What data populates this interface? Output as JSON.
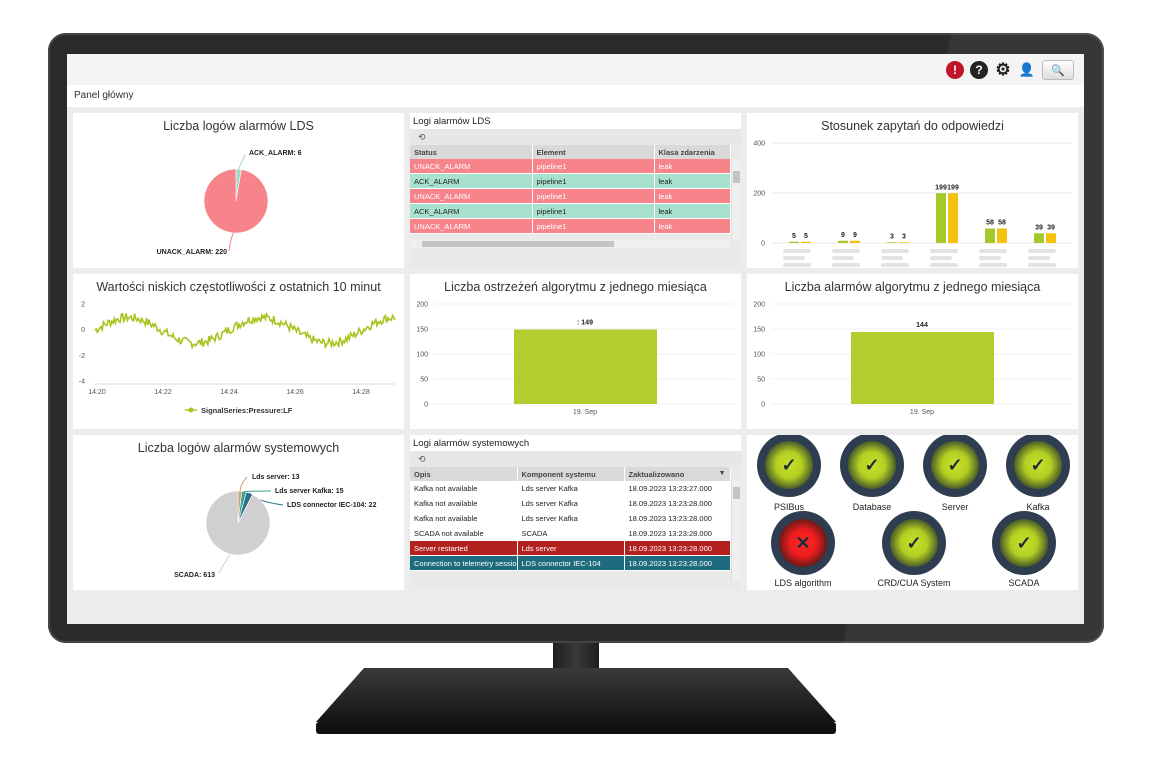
{
  "breadcrumb": "Panel główny",
  "toolbar": {
    "alert_glyph": "!",
    "help_glyph": "?",
    "settings_glyph": "⚙",
    "user_glyph": "👤",
    "search_glyph": "🔍"
  },
  "panels": {
    "lds_pie": {
      "title": "Liczba logów alarmów LDS",
      "slices": [
        {
          "label": "ACK_ALARM: 6",
          "value": 6,
          "color": "#9fd8c5"
        },
        {
          "label": "UNACK_ALARM: 220",
          "value": 220,
          "color": "#f7848a"
        }
      ]
    },
    "lds_log": {
      "title": "Logi alarmów LDS",
      "refresh_glyph": "⟲",
      "columns": [
        "Status",
        "Element",
        "Klasa zdarzenia"
      ],
      "rows": [
        {
          "status": "UNACK_ALARM",
          "element": "pipeline1",
          "klasa": "leak",
          "kind": "unack"
        },
        {
          "status": "ACK_ALARM",
          "element": "pipeline1",
          "klasa": "leak",
          "kind": "ack"
        },
        {
          "status": "UNACK_ALARM",
          "element": "pipeline1",
          "klasa": "leak",
          "kind": "unack"
        },
        {
          "status": "ACK_ALARM",
          "element": "pipeline1",
          "klasa": "leak",
          "kind": "ack"
        },
        {
          "status": "UNACK_ALARM",
          "element": "pipeline1",
          "klasa": "leak",
          "kind": "unack"
        }
      ]
    },
    "ratio": {
      "title": "Stosunek zapytań do odpowiedzi",
      "y_ticks": [
        "400",
        "200",
        "0"
      ],
      "groups": [
        {
          "a": "5",
          "b": "5"
        },
        {
          "a": "9",
          "b": "9"
        },
        {
          "a": "3",
          "b": "3"
        },
        {
          "a": "199",
          "b": "199"
        },
        {
          "a": "58",
          "b": "58"
        },
        {
          "a": "39",
          "b": "39"
        }
      ]
    },
    "lowfreq": {
      "title": "Wartości niskich częstotliwości z ostatnich 10 minut",
      "y_ticks": [
        "2",
        "0",
        "-2",
        "-4"
      ],
      "x_ticks": [
        "14:20",
        "14:22",
        "14:24",
        "14:26",
        "14:28"
      ],
      "legend": "SignalSeries:Pressure:LF"
    },
    "warnings": {
      "title": "Liczba ostrzeżeń algorytmu z jednego miesiąca",
      "bar_label": ": 149",
      "x_tick": "19. Sep",
      "y_ticks": [
        "200",
        "150",
        "100",
        "50",
        "0"
      ]
    },
    "alarms": {
      "title": "Liczba alarmów algorytmu z jednego miesiąca",
      "bar_label": "144",
      "x_tick": "19. Sep",
      "y_ticks": [
        "200",
        "150",
        "100",
        "50",
        "0"
      ]
    },
    "sys_pie": {
      "title": "Liczba logów alarmów systemowych",
      "slices": [
        {
          "label": "Lds server: 13",
          "value": 13,
          "color": "#c7a27a"
        },
        {
          "label": "Lds server Kafka: 15",
          "value": 15,
          "color": "#3aa38f"
        },
        {
          "label": "LDS connector IEC-104: 22",
          "value": 22,
          "color": "#2c6e8c"
        },
        {
          "label": "SCADA: 613",
          "value": 613,
          "color": "#d0d0d0"
        }
      ]
    },
    "sys_log": {
      "title": "Logi alarmów systemowych",
      "refresh_glyph": "⟲",
      "sort_glyph": "▼",
      "columns": [
        "Opis",
        "Komponent systemu",
        "Zaktualizowano"
      ],
      "rows": [
        {
          "opis": "Kafka not available",
          "komponent": "Lds server Kafka",
          "czas": "18.09.2023 13:23:27.000",
          "kind": "normal"
        },
        {
          "opis": "Kafka not available",
          "komponent": "Lds server Kafka",
          "czas": "18.09.2023 13:23:28.000",
          "kind": "normal"
        },
        {
          "opis": "Kafka not available",
          "komponent": "Lds server Kafka",
          "czas": "18.09.2023 13:23:28.000",
          "kind": "normal"
        },
        {
          "opis": "SCADA not available",
          "komponent": "SCADA",
          "czas": "18.09.2023 13:23:28.000",
          "kind": "normal"
        },
        {
          "opis": "Server restarted",
          "komponent": "Lds server",
          "czas": "18.09.2023 13:23:28.000",
          "kind": "red"
        },
        {
          "opis": "Connection to telemetry session",
          "komponent": "LDS connector IEC-104",
          "czas": "18.09.2023 13:23:28.000",
          "kind": "teal"
        }
      ]
    },
    "status": {
      "ok_glyph": "✓",
      "fail_glyph": "✕",
      "items": [
        {
          "label": "PSIBus",
          "state": "ok"
        },
        {
          "label": "Database",
          "state": "ok"
        },
        {
          "label": "Server",
          "state": "ok"
        },
        {
          "label": "Kafka",
          "state": "ok"
        },
        {
          "label": "LDS algorithm",
          "state": "fail"
        },
        {
          "label": "CRD/CUA System",
          "state": "ok"
        },
        {
          "label": "SCADA",
          "state": "ok"
        }
      ]
    }
  }
}
